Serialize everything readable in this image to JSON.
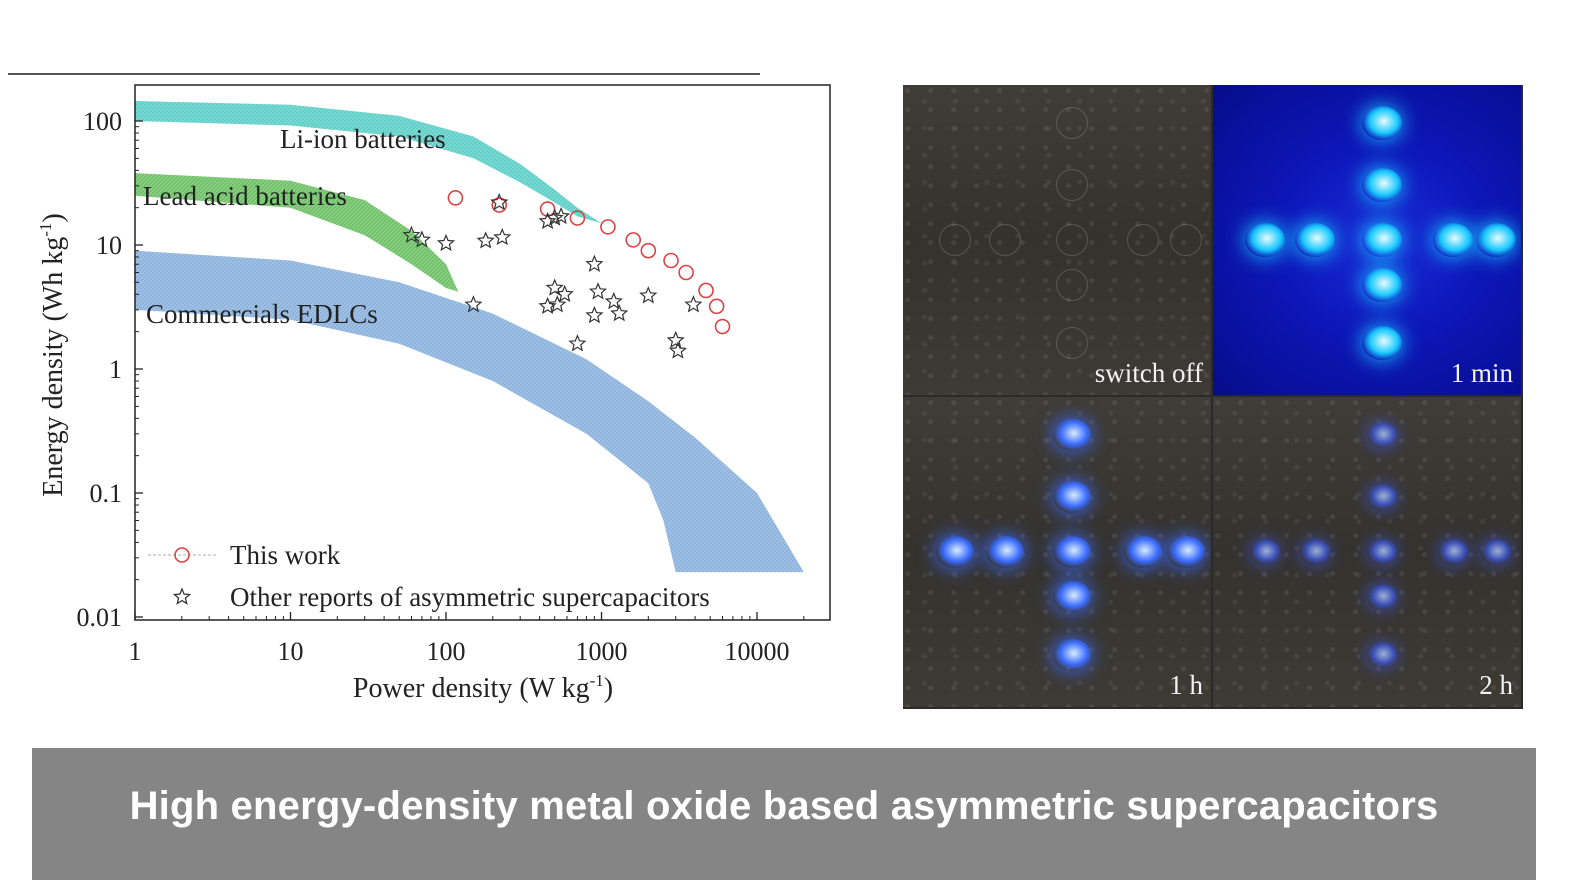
{
  "chart_data": {
    "type": "scatter",
    "xlabel": "Power density (W kg",
    "xlabel_sup": "-1",
    "xlabel_end": ")",
    "ylabel": "Energy density (Wh kg",
    "ylabel_sup": "-1",
    "ylabel_end": ")",
    "xscale": "log",
    "yscale": "log",
    "xlim": [
      1,
      20000
    ],
    "ylim": [
      0.01,
      200
    ],
    "x_ticks": [
      "1",
      "10",
      "100",
      "1000",
      "10000"
    ],
    "y_ticks": [
      "0.01",
      "0.1",
      "1",
      "10",
      "100"
    ],
    "regions": [
      {
        "name": "Li-ion batteries",
        "color": "#48c9c0",
        "upper": [
          [
            1,
            145
          ],
          [
            10,
            135
          ],
          [
            50,
            110
          ],
          [
            150,
            75
          ],
          [
            300,
            45
          ],
          [
            500,
            28
          ],
          [
            700,
            20
          ],
          [
            1000,
            15
          ]
        ],
        "lower": [
          [
            1,
            100
          ],
          [
            10,
            92
          ],
          [
            50,
            75
          ],
          [
            150,
            50
          ],
          [
            300,
            32
          ],
          [
            500,
            22
          ],
          [
            700,
            17
          ],
          [
            1000,
            15
          ]
        ]
      },
      {
        "name": "Lead acid batteries",
        "color": "#5ab852",
        "upper": [
          [
            1,
            38
          ],
          [
            10,
            33
          ],
          [
            30,
            23
          ],
          [
            60,
            13
          ],
          [
            100,
            7
          ],
          [
            120,
            4.2
          ]
        ],
        "lower": [
          [
            1,
            25
          ],
          [
            10,
            20
          ],
          [
            30,
            12
          ],
          [
            60,
            7
          ],
          [
            100,
            4.5
          ],
          [
            120,
            4.2
          ]
        ]
      },
      {
        "name": "Commercials EDLCs",
        "color": "#7ba8d8",
        "upper": [
          [
            1,
            9
          ],
          [
            10,
            7.5
          ],
          [
            50,
            5
          ],
          [
            200,
            2.8
          ],
          [
            800,
            1.2
          ],
          [
            2000,
            0.55
          ],
          [
            4000,
            0.28
          ],
          [
            10000,
            0.1
          ],
          [
            20000,
            0.023
          ]
        ],
        "lower": [
          [
            1,
            3
          ],
          [
            10,
            2.5
          ],
          [
            50,
            1.6
          ],
          [
            200,
            0.8
          ],
          [
            800,
            0.3
          ],
          [
            2000,
            0.12
          ],
          [
            2500,
            0.06
          ],
          [
            3000,
            0.023
          ]
        ]
      }
    ],
    "series": [
      {
        "name": "This work",
        "marker": "circle",
        "color": "#d94545",
        "points": [
          [
            115,
            24
          ],
          [
            220,
            21
          ],
          [
            450,
            19.5
          ],
          [
            700,
            16.5
          ],
          [
            1100,
            14
          ],
          [
            1600,
            11
          ],
          [
            2000,
            9
          ],
          [
            2800,
            7.5
          ],
          [
            3500,
            6
          ],
          [
            4700,
            4.3
          ],
          [
            5500,
            3.2
          ],
          [
            6000,
            2.2
          ]
        ]
      },
      {
        "name": "Other reports of asymmetric supercapacitors",
        "marker": "star",
        "color": "#333333",
        "points": [
          [
            60,
            12
          ],
          [
            70,
            11
          ],
          [
            100,
            10.3
          ],
          [
            180,
            10.8
          ],
          [
            230,
            11.5
          ],
          [
            220,
            22
          ],
          [
            450,
            15.5
          ],
          [
            500,
            16.5
          ],
          [
            550,
            17
          ],
          [
            500,
            4.5
          ],
          [
            580,
            4
          ],
          [
            450,
            3.2
          ],
          [
            520,
            3.3
          ],
          [
            700,
            1.6
          ],
          [
            900,
            7
          ],
          [
            950,
            4.2
          ],
          [
            900,
            2.7
          ],
          [
            1200,
            3.5
          ],
          [
            1300,
            2.8
          ],
          [
            2000,
            3.9
          ],
          [
            3000,
            1.7
          ],
          [
            3100,
            1.4
          ],
          [
            3900,
            3.3
          ],
          [
            150,
            3.3
          ]
        ]
      }
    ]
  },
  "photos": {
    "tiles": [
      {
        "label": "switch off"
      },
      {
        "label": "1 min"
      },
      {
        "label": "1 h"
      },
      {
        "label": "2 h"
      }
    ]
  },
  "banner": {
    "title": "High energy-density metal oxide based asymmetric supercapacitors",
    "color": "#858585"
  }
}
